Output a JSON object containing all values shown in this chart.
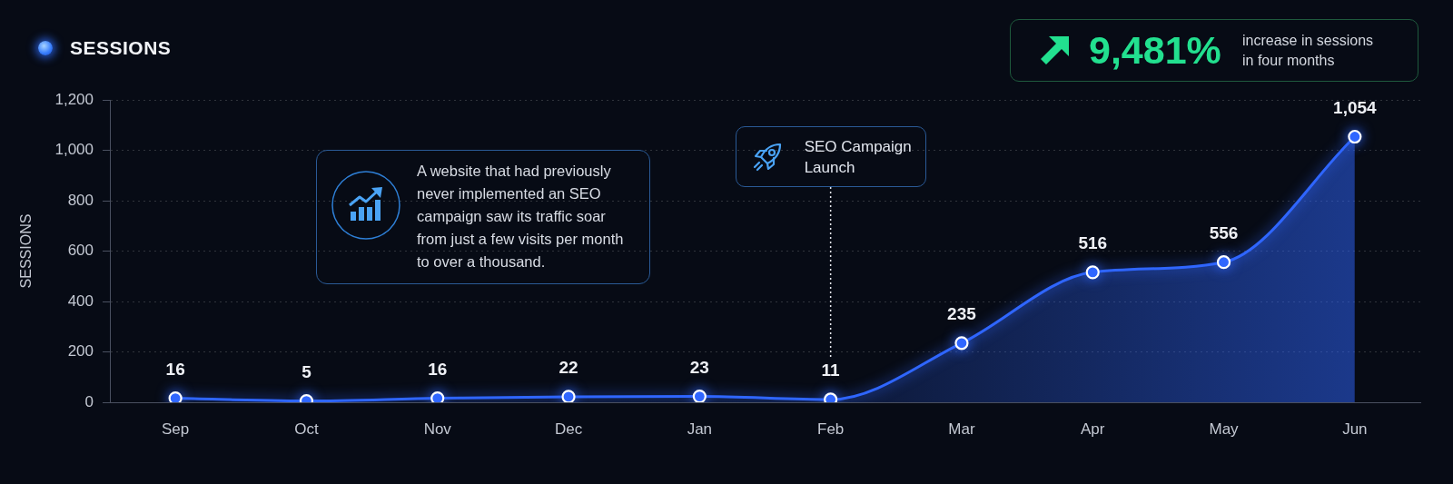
{
  "chart_data": {
    "type": "area",
    "title": "SESSIONS",
    "ylabel": "SESSIONS",
    "categories": [
      "Sep",
      "Oct",
      "Nov",
      "Dec",
      "Jan",
      "Feb",
      "Mar",
      "Apr",
      "May",
      "Jun"
    ],
    "values": [
      16,
      5,
      16,
      22,
      23,
      11,
      235,
      516,
      556,
      1054
    ],
    "value_labels": [
      "16",
      "5",
      "16",
      "22",
      "23",
      "11",
      "235",
      "516",
      "556",
      "1,054"
    ],
    "color": "#2f66ff",
    "ylim": [
      0,
      1200
    ],
    "yticks": [
      0,
      200,
      400,
      600,
      800,
      {
        "value": 1000,
        "label": "1,000"
      },
      {
        "value": 1200,
        "label": "1,200"
      }
    ],
    "grid": "y",
    "marker": "circle",
    "line_style": "solid",
    "ref_lines": [
      {
        "axis": "x",
        "value": "Feb",
        "label": "SEO Campaign Launch",
        "color": "#e6e9f0",
        "line_style": "dotted"
      }
    ],
    "annotations": [
      "9,481%",
      "increase in sessions in four months",
      "A website that had previously never implemented an SEO campaign saw its traffic soar from just a few visits per month to over a thousand."
    ]
  }
}
